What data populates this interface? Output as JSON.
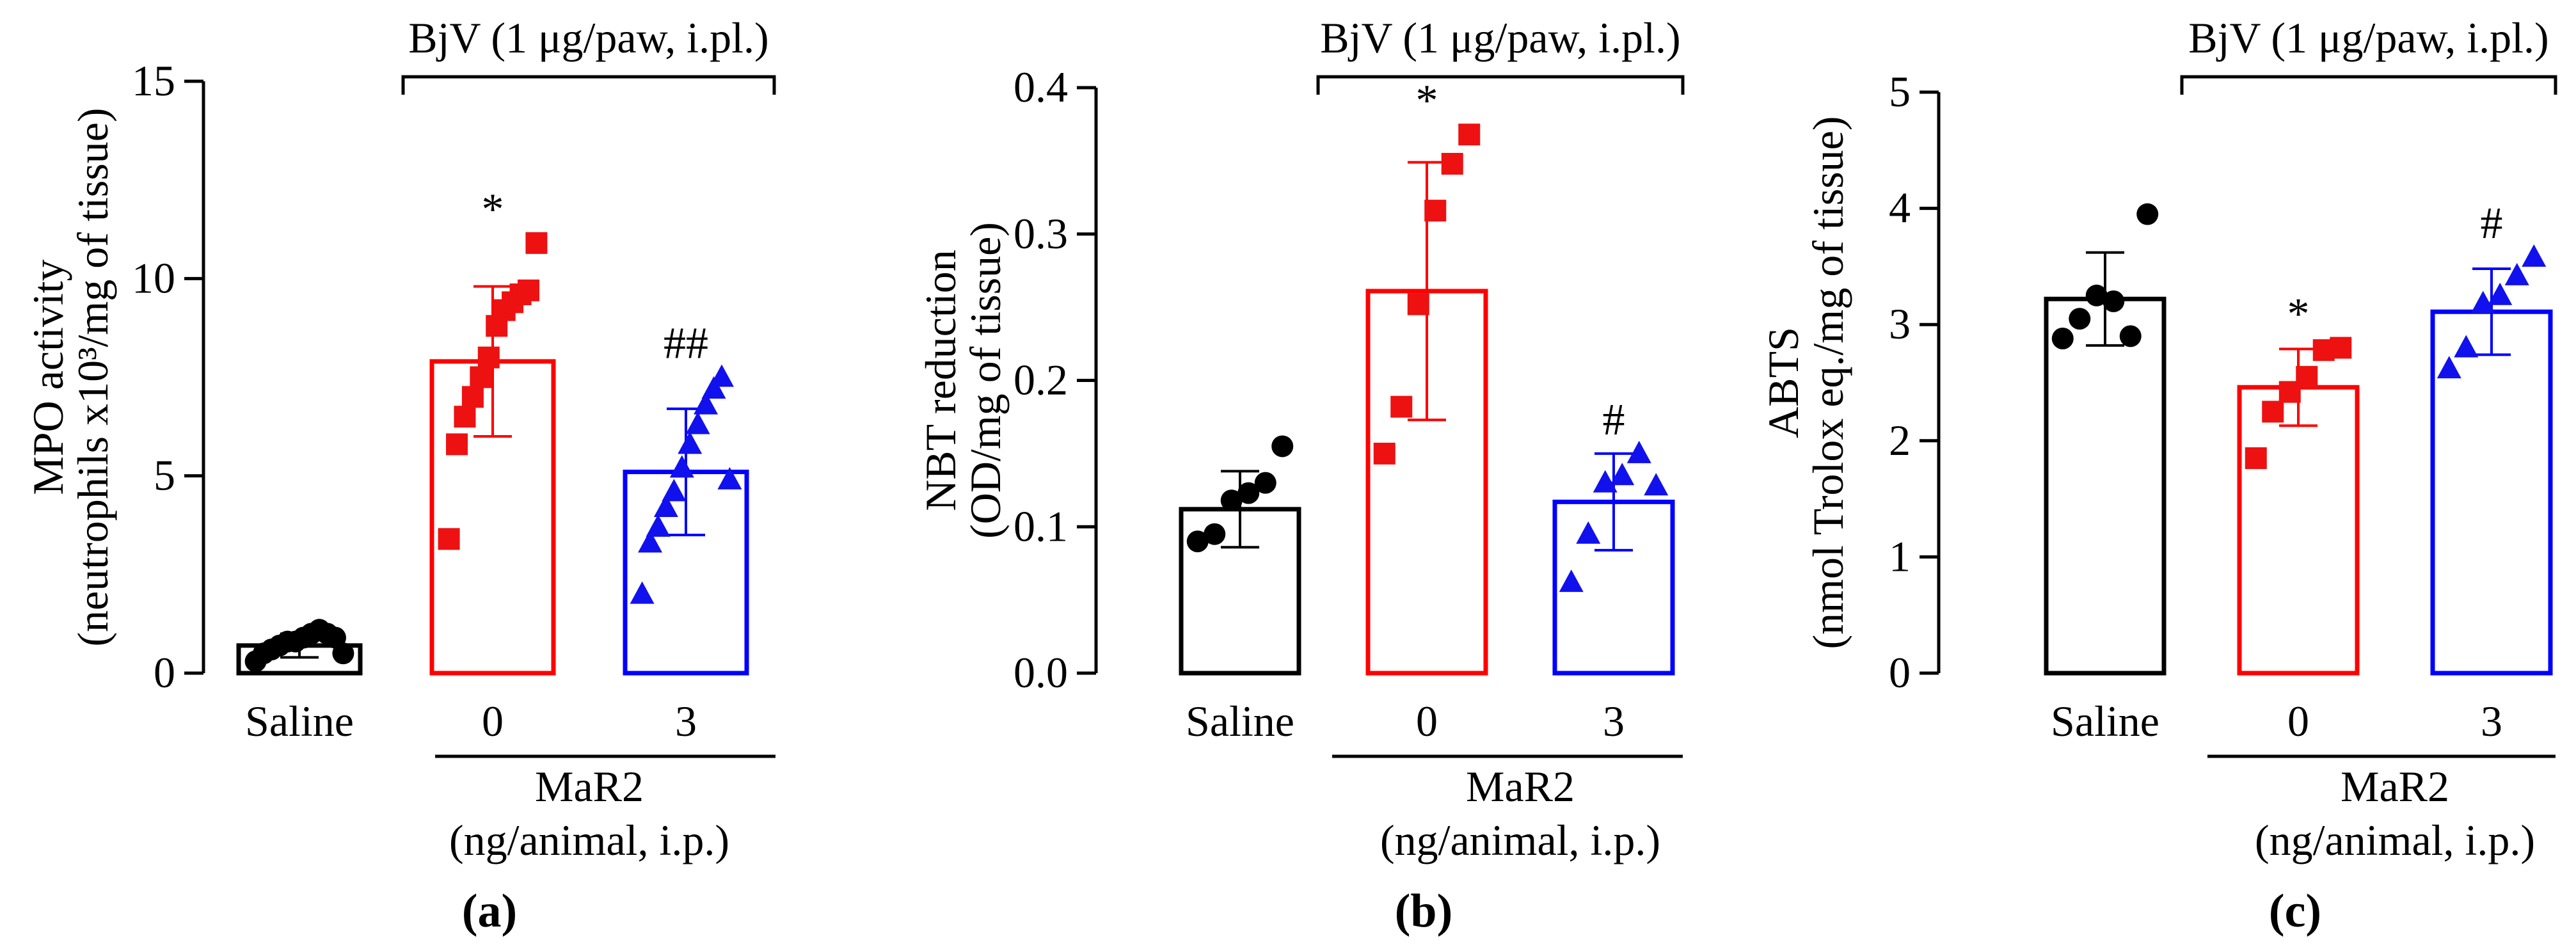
{
  "chart_data": [
    {
      "type": "bar",
      "panel_label": "(a)",
      "categories": [
        "Saline",
        "0",
        "3"
      ],
      "group_label": "MaR2",
      "group_label_sub": "(ng/animal, i.p.)",
      "treatment_label": "BjV (1 μg/paw, i.pl.)",
      "ylabel_line1": "MPO activity",
      "ylabel_line2": "(neutrophils x10³/mg of tissue)",
      "ylim": [
        0,
        15
      ],
      "yticks": [
        0,
        5,
        10,
        15
      ],
      "ytick_labels": [
        "0",
        "5",
        "10",
        "15"
      ],
      "values": [
        0.7,
        7.9,
        5.1
      ],
      "sd": [
        0.3,
        1.9,
        1.6
      ],
      "points": [
        [
          0.3,
          0.5,
          0.6,
          0.7,
          0.8,
          0.8,
          0.9,
          1.0,
          1.1,
          1.0,
          0.9,
          0.5
        ],
        [
          3.4,
          5.8,
          6.5,
          7.0,
          7.5,
          8.0,
          8.8,
          9.2,
          9.4,
          9.6,
          9.7,
          10.9
        ],
        [
          2.0,
          3.3,
          3.7,
          4.2,
          4.6,
          5.2,
          5.8,
          6.3,
          6.8,
          7.2,
          7.5,
          4.9
        ]
      ],
      "marker_shapes": [
        "circle",
        "square",
        "triangle"
      ],
      "significance": [
        "",
        "*",
        "##"
      ],
      "colors": [
        "#000000",
        "#ff0000",
        "#0000ff"
      ],
      "marker_colors": [
        "#000000",
        "#ee1111",
        "#1111ee"
      ]
    },
    {
      "type": "bar",
      "panel_label": "(b)",
      "categories": [
        "Saline",
        "0",
        "3"
      ],
      "group_label": "MaR2",
      "group_label_sub": "(ng/animal, i.p.)",
      "treatment_label": "BjV (1 μg/paw, i.pl.)",
      "ylabel_line1": "NBT reduction",
      "ylabel_line2": "(OD/mg of tissue)",
      "ylim": [
        0,
        0.4
      ],
      "yticks": [
        0,
        0.1,
        0.2,
        0.3,
        0.4
      ],
      "ytick_labels": [
        "0.0",
        "0.1",
        "0.2",
        "0.3",
        "0.4"
      ],
      "values": [
        0.112,
        0.261,
        0.117
      ],
      "sd": [
        0.026,
        0.088,
        0.033
      ],
      "points": [
        [
          0.09,
          0.095,
          0.118,
          0.123,
          0.13,
          0.155
        ],
        [
          0.15,
          0.182,
          0.252,
          0.316,
          0.348,
          0.368
        ],
        [
          0.062,
          0.095,
          0.13,
          0.135,
          0.15,
          0.128
        ]
      ],
      "marker_shapes": [
        "circle",
        "square",
        "triangle"
      ],
      "significance": [
        "",
        "*",
        "#"
      ],
      "colors": [
        "#000000",
        "#ff0000",
        "#0000ff"
      ],
      "marker_colors": [
        "#000000",
        "#ee1111",
        "#1111ee"
      ]
    },
    {
      "type": "bar",
      "panel_label": "(c)",
      "categories": [
        "Saline",
        "0",
        "3"
      ],
      "group_label": "MaR2",
      "group_label_sub": "(ng/animal, i.p.)",
      "treatment_label": "BjV (1 μg/paw, i.pl.)",
      "ylabel_line1": "ABTS",
      "ylabel_line2": "(nmol Trolox eq./mg of tissue)",
      "ylim": [
        0,
        5
      ],
      "yticks": [
        0,
        1,
        2,
        3,
        4,
        5
      ],
      "ytick_labels": [
        "0",
        "1",
        "2",
        "3",
        "4",
        "5"
      ],
      "values": [
        3.22,
        2.46,
        3.11
      ],
      "sd": [
        0.4,
        0.33,
        0.37
      ],
      "points": [
        [
          2.88,
          3.05,
          3.25,
          3.2,
          2.9,
          3.95
        ],
        [
          1.85,
          2.25,
          2.42,
          2.55,
          2.78,
          2.8
        ],
        [
          2.62,
          2.8,
          3.18,
          3.25,
          3.42,
          3.58
        ]
      ],
      "marker_shapes": [
        "circle",
        "square",
        "triangle"
      ],
      "significance": [
        "",
        "*",
        "#"
      ],
      "colors": [
        "#000000",
        "#ff0000",
        "#0000ff"
      ],
      "marker_colors": [
        "#000000",
        "#ee1111",
        "#1111ee"
      ]
    }
  ]
}
